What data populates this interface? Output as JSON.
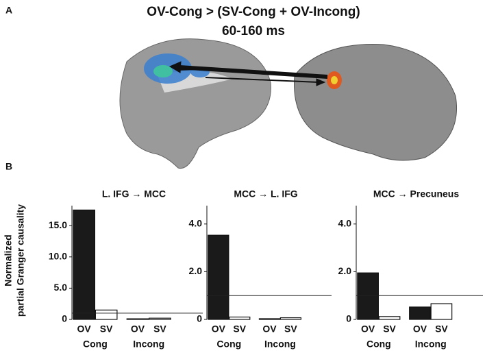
{
  "panel_a": {
    "label": "A",
    "title": "OV-Cong > (SV-Cong + OV-Incong)",
    "subtitle": "60-160 ms"
  },
  "panel_b": {
    "label": "B",
    "y_label": [
      "Normalized",
      "partial Granger causality"
    ]
  },
  "chart_data": [
    {
      "type": "bar",
      "title": "L. IFG → MCC",
      "categories": [
        "OV",
        "SV",
        "OV",
        "SV"
      ],
      "groups": [
        "Cong",
        "Incong"
      ],
      "values": [
        17.5,
        1.5,
        0.1,
        0.2
      ],
      "colors": [
        "#1a1a1a",
        "#ffffff",
        "#1a1a1a",
        "#ffffff"
      ],
      "ylim": [
        0,
        18.2
      ],
      "yticks": [
        0,
        {
          "value": 5,
          "label": "5.0"
        },
        {
          "value": 10,
          "label": "10.0"
        },
        {
          "value": 15,
          "label": "15.0"
        }
      ],
      "reference_line": 1
    },
    {
      "type": "bar",
      "title": "MCC → L. IFG",
      "categories": [
        "OV",
        "SV",
        "OV",
        "SV"
      ],
      "groups": [
        "Cong",
        "Incong"
      ],
      "values": [
        3.53,
        0.1,
        0.03,
        0.07
      ],
      "colors": [
        "#1a1a1a",
        "#ffffff",
        "#1a1a1a",
        "#ffffff"
      ],
      "ylim": [
        0,
        4.77
      ],
      "yticks": [
        0,
        {
          "value": 2,
          "label": "2.0"
        },
        {
          "value": 4,
          "label": "4.0"
        }
      ],
      "reference_line": 1
    },
    {
      "type": "bar",
      "title": "MCC → Precuneus",
      "categories": [
        "OV",
        "SV",
        "OV",
        "SV"
      ],
      "groups": [
        "Cong",
        "Incong"
      ],
      "values": [
        1.95,
        0.12,
        0.52,
        0.66
      ],
      "colors": [
        "#1a1a1a",
        "#ffffff",
        "#1a1a1a",
        "#ffffff"
      ],
      "ylim": [
        0,
        4.77
      ],
      "yticks": [
        0,
        {
          "value": 2,
          "label": "2.0"
        },
        {
          "value": 4,
          "label": "4.0"
        }
      ],
      "reference_line": 1
    }
  ]
}
